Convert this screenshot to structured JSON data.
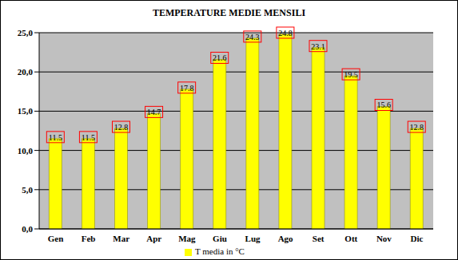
{
  "chart_data": {
    "type": "bar",
    "title": "TEMPERATURE MEDIE MENSILI",
    "categories": [
      "Gen",
      "Feb",
      "Mar",
      "Apr",
      "Mag",
      "Giu",
      "Lug",
      "Ago",
      "Set",
      "Ott",
      "Nov",
      "Dic"
    ],
    "series": [
      {
        "name": "T media in °C",
        "color": "#ffff00",
        "values": [
          11.5,
          11.5,
          12.8,
          14.7,
          17.8,
          21.6,
          24.3,
          24.8,
          23.1,
          19.5,
          15.6,
          12.8
        ]
      }
    ],
    "ylim": [
      0,
      25
    ],
    "yticks": [
      {
        "value": 0,
        "label": "0,0"
      },
      {
        "value": 5,
        "label": "5,0"
      },
      {
        "value": 10,
        "label": "10,0"
      },
      {
        "value": 15,
        "label": "15,0"
      },
      {
        "value": 20,
        "label": "20,0"
      },
      {
        "value": 25,
        "label": "25,0"
      }
    ],
    "grid": true,
    "data_labels": true,
    "legend": "bottom"
  }
}
